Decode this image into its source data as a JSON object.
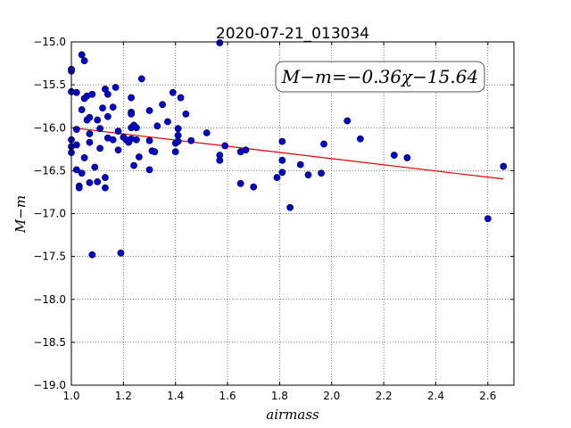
{
  "chart_data": {
    "type": "scatter",
    "title": "2020-07-21_013034",
    "xlabel": "airmass",
    "ylabel": "M−m",
    "xlim": [
      1.0,
      2.7
    ],
    "ylim": [
      -19.0,
      -15.0
    ],
    "y_inverted": true,
    "grid": true,
    "x_ticks": [
      1.0,
      1.2,
      1.4,
      1.6,
      1.8,
      2.0,
      2.2,
      2.4,
      2.6
    ],
    "x_tick_labels": [
      "1.0",
      "1.2",
      "1.4",
      "1.6",
      "1.8",
      "2.0",
      "2.2",
      "2.4",
      "2.6"
    ],
    "y_ticks": [
      -15.0,
      -15.5,
      -16.0,
      -16.5,
      -17.0,
      -17.5,
      -18.0,
      -18.5,
      -19.0
    ],
    "y_tick_labels": [
      "−15.0",
      "−15.5",
      "−16.0",
      "−16.5",
      "−17.0",
      "−17.5",
      "−18.0",
      "−18.5",
      "−19.0"
    ],
    "annotation": "M−m=−0.36χ−15.64",
    "marker_color": "#0000cc",
    "line_color": "#dd0000",
    "fit": {
      "slope": -0.36,
      "intercept": -15.64,
      "x_range": [
        1.02,
        2.66
      ]
    },
    "points": [
      [
        1.0,
        -15.34
      ],
      [
        1.0,
        -15.32
      ],
      [
        1.0,
        -15.58
      ],
      [
        1.0,
        -16.14
      ],
      [
        1.0,
        -16.22
      ],
      [
        1.0,
        -16.29
      ],
      [
        1.02,
        -15.59
      ],
      [
        1.02,
        -16.02
      ],
      [
        1.02,
        -16.2
      ],
      [
        1.02,
        -16.49
      ],
      [
        1.03,
        -16.68
      ],
      [
        1.03,
        -16.7
      ],
      [
        1.04,
        -15.79
      ],
      [
        1.04,
        -16.53
      ],
      [
        1.04,
        -15.15
      ],
      [
        1.05,
        -15.22
      ],
      [
        1.05,
        -15.66
      ],
      [
        1.05,
        -16.35
      ],
      [
        1.06,
        -15.63
      ],
      [
        1.06,
        -15.91
      ],
      [
        1.07,
        -16.64
      ],
      [
        1.07,
        -16.17
      ],
      [
        1.07,
        -16.07
      ],
      [
        1.07,
        -15.88
      ],
      [
        1.08,
        -15.61
      ],
      [
        1.08,
        -17.48
      ],
      [
        1.09,
        -16.46
      ],
      [
        1.1,
        -16.63
      ],
      [
        1.1,
        -15.91
      ],
      [
        1.11,
        -16.01
      ],
      [
        1.11,
        -16.24
      ],
      [
        1.12,
        -15.77
      ],
      [
        1.13,
        -16.7
      ],
      [
        1.13,
        -16.58
      ],
      [
        1.13,
        -15.55
      ],
      [
        1.14,
        -15.87
      ],
      [
        1.14,
        -15.61
      ],
      [
        1.14,
        -16.12
      ],
      [
        1.16,
        -16.14
      ],
      [
        1.16,
        -15.76
      ],
      [
        1.17,
        -15.53
      ],
      [
        1.18,
        -16.04
      ],
      [
        1.18,
        -16.26
      ],
      [
        1.19,
        -17.46
      ],
      [
        1.2,
        -16.11
      ],
      [
        1.21,
        -16.14
      ],
      [
        1.22,
        -16.17
      ],
      [
        1.23,
        -16.13
      ],
      [
        1.23,
        -16.0
      ],
      [
        1.23,
        -15.65
      ],
      [
        1.23,
        -15.82
      ],
      [
        1.23,
        -15.84
      ],
      [
        1.24,
        -15.97
      ],
      [
        1.24,
        -16.44
      ],
      [
        1.25,
        -16.14
      ],
      [
        1.25,
        -16.0
      ],
      [
        1.26,
        -16.34
      ],
      [
        1.27,
        -15.43
      ],
      [
        1.3,
        -16.49
      ],
      [
        1.3,
        -16.15
      ],
      [
        1.3,
        -15.8
      ],
      [
        1.31,
        -16.27
      ],
      [
        1.32,
        -16.28
      ],
      [
        1.33,
        -15.98
      ],
      [
        1.35,
        -15.73
      ],
      [
        1.37,
        -15.93
      ],
      [
        1.39,
        -15.59
      ],
      [
        1.4,
        -16.28
      ],
      [
        1.4,
        -16.18
      ],
      [
        1.41,
        -16.16
      ],
      [
        1.41,
        -16.01
      ],
      [
        1.41,
        -16.09
      ],
      [
        1.42,
        -15.65
      ],
      [
        1.44,
        -15.84
      ],
      [
        1.46,
        -16.15
      ],
      [
        1.52,
        -16.06
      ],
      [
        1.57,
        -15.01
      ],
      [
        1.57,
        -16.32
      ],
      [
        1.57,
        -16.38
      ],
      [
        1.59,
        -16.21
      ],
      [
        1.65,
        -16.28
      ],
      [
        1.65,
        -16.65
      ],
      [
        1.67,
        -16.26
      ],
      [
        1.7,
        -16.69
      ],
      [
        1.79,
        -16.58
      ],
      [
        1.81,
        -16.16
      ],
      [
        1.81,
        -16.38
      ],
      [
        1.81,
        -16.52
      ],
      [
        1.84,
        -16.93
      ],
      [
        1.88,
        -16.43
      ],
      [
        1.91,
        -16.55
      ],
      [
        1.96,
        -16.53
      ],
      [
        1.97,
        -16.19
      ],
      [
        2.06,
        -15.92
      ],
      [
        2.11,
        -16.13
      ],
      [
        2.24,
        -16.32
      ],
      [
        2.29,
        -16.35
      ],
      [
        2.6,
        -17.06
      ],
      [
        2.66,
        -16.45
      ]
    ]
  }
}
